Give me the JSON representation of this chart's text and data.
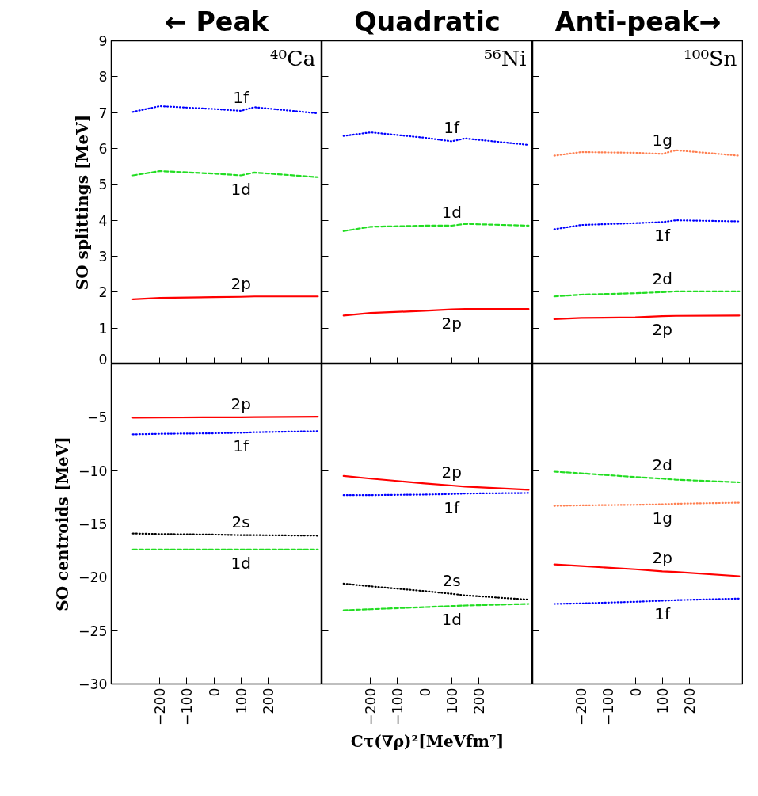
{
  "chart_data": [
    {
      "type": "line",
      "title": "← Peak",
      "ylabel": "SO splittings [MeV]",
      "annotations": [
        "⁴⁰Ca"
      ],
      "x": [
        -300,
        -200,
        0,
        100,
        150,
        385
      ],
      "xlim": [
        -380,
        400
      ],
      "ylim": [
        0,
        9
      ],
      "xticks": [
        -200,
        -100,
        0,
        100,
        200
      ],
      "yticks": [
        0,
        1,
        2,
        3,
        4,
        5,
        6,
        7,
        8,
        9
      ],
      "tick_labels": "y",
      "grid": false,
      "legend": false,
      "series": [
        {
          "name": "1f",
          "color": "#0000ff",
          "line_style": "dotted",
          "values": [
            7.02,
            7.18,
            7.1,
            7.05,
            7.15,
            6.98
          ]
        },
        {
          "name": "1d",
          "color": "#22dd22",
          "line_style": "dashed",
          "values": [
            5.25,
            5.37,
            5.3,
            5.25,
            5.33,
            5.2
          ]
        },
        {
          "name": "2p",
          "color": "#ff0000",
          "line_style": "solid",
          "values": [
            1.8,
            1.84,
            1.86,
            1.87,
            1.88,
            1.88
          ]
        }
      ]
    },
    {
      "type": "line",
      "title": "Quadratic",
      "annotations": [
        "⁵⁶Ni"
      ],
      "x": [
        -300,
        -200,
        0,
        100,
        150,
        385
      ],
      "xlim": [
        -380,
        400
      ],
      "ylim": [
        0,
        9
      ],
      "xticks": [
        -200,
        -100,
        0,
        100,
        200
      ],
      "yticks": [
        0,
        1,
        2,
        3,
        4,
        5,
        6,
        7,
        8,
        9
      ],
      "tick_labels": false,
      "grid": false,
      "legend": false,
      "series": [
        {
          "name": "1f",
          "color": "#0000ff",
          "line_style": "dotted",
          "values": [
            6.35,
            6.45,
            6.3,
            6.2,
            6.28,
            6.1
          ]
        },
        {
          "name": "2p",
          "color": "#ff0000",
          "line_style": "solid",
          "values": [
            1.35,
            1.42,
            1.48,
            1.52,
            1.53,
            1.53
          ]
        },
        {
          "name": "1d",
          "color": "#22dd22",
          "line_style": "dashed",
          "values": [
            3.7,
            3.82,
            3.85,
            3.85,
            3.9,
            3.85
          ]
        }
      ]
    },
    {
      "type": "line",
      "title": "Anti-peak→",
      "annotations": [
        "¹⁰⁰Sn"
      ],
      "x": [
        -300,
        -200,
        0,
        100,
        150,
        385
      ],
      "xlim": [
        -380,
        400
      ],
      "ylim": [
        0,
        9
      ],
      "xticks": [
        -200,
        -100,
        0,
        100,
        200
      ],
      "yticks": [
        0,
        1,
        2,
        3,
        4,
        5,
        6,
        7,
        8,
        9
      ],
      "tick_labels": false,
      "grid": false,
      "legend": false,
      "series": [
        {
          "name": "2d",
          "color": "#22dd22",
          "line_style": "dashed",
          "values": [
            1.88,
            1.93,
            1.97,
            2.0,
            2.02,
            2.02
          ]
        },
        {
          "name": "2p",
          "color": "#ff0000",
          "line_style": "solid",
          "values": [
            1.25,
            1.28,
            1.3,
            1.33,
            1.34,
            1.35
          ]
        },
        {
          "name": "1g",
          "color": "#ff7f50",
          "line_style": "dotted",
          "values": [
            5.8,
            5.9,
            5.88,
            5.85,
            5.95,
            5.8
          ]
        },
        {
          "name": "1f",
          "color": "#0000ff",
          "line_style": "dotted",
          "values": [
            3.75,
            3.87,
            3.92,
            3.95,
            4.0,
            3.97
          ]
        }
      ]
    },
    {
      "type": "line",
      "ylabel": "SO centroids [MeV]",
      "x": [
        -300,
        -200,
        0,
        100,
        150,
        385
      ],
      "xlim": [
        -380,
        400
      ],
      "ylim": [
        -30,
        0
      ],
      "xticks": [
        -200,
        -100,
        0,
        100,
        200
      ],
      "yticks": [
        -5,
        -10,
        -15,
        -20,
        -25,
        -30
      ],
      "grid": false,
      "legend": false,
      "series": [
        {
          "name": "2p",
          "color": "#ff0000",
          "line_style": "solid",
          "values": [
            -5.05,
            -5.03,
            -5.0,
            -5.0,
            -4.98,
            -4.95
          ]
        },
        {
          "name": "1f",
          "color": "#0000ff",
          "line_style": "dotted",
          "values": [
            -6.6,
            -6.55,
            -6.5,
            -6.45,
            -6.4,
            -6.3
          ]
        },
        {
          "name": "2s",
          "color": "#000000",
          "line_style": "dotted",
          "values": [
            -15.9,
            -15.95,
            -16.0,
            -16.05,
            -16.05,
            -16.1
          ]
        },
        {
          "name": "1d",
          "color": "#22dd22",
          "line_style": "dashed",
          "values": [
            -17.4,
            -17.4,
            -17.4,
            -17.4,
            -17.4,
            -17.4
          ]
        }
      ]
    },
    {
      "type": "line",
      "xlabel": "Cτ(∇ρ)²[MeVfm⁷]",
      "x": [
        -300,
        -200,
        0,
        100,
        150,
        385
      ],
      "xlim": [
        -380,
        400
      ],
      "ylim": [
        -30,
        0
      ],
      "xticks": [
        -200,
        -100,
        0,
        100,
        200
      ],
      "yticks": [
        -5,
        -10,
        -15,
        -20,
        -25,
        -30
      ],
      "tick_labels": "x",
      "grid": false,
      "legend": false,
      "series": [
        {
          "name": "2p",
          "color": "#ff0000",
          "line_style": "solid",
          "values": [
            -10.5,
            -10.75,
            -11.2,
            -11.4,
            -11.5,
            -11.8
          ]
        },
        {
          "name": "1f",
          "color": "#0000ff",
          "line_style": "dotted",
          "values": [
            -12.3,
            -12.3,
            -12.25,
            -12.2,
            -12.15,
            -12.1
          ]
        },
        {
          "name": "2s",
          "color": "#000000",
          "line_style": "dotted",
          "values": [
            -20.6,
            -20.85,
            -21.3,
            -21.55,
            -21.7,
            -22.1
          ]
        },
        {
          "name": "1d",
          "color": "#22dd22",
          "line_style": "dashed",
          "values": [
            -23.1,
            -23.0,
            -22.8,
            -22.7,
            -22.65,
            -22.5
          ]
        }
      ]
    },
    {
      "type": "line",
      "x": [
        -300,
        -200,
        0,
        100,
        150,
        385
      ],
      "xlim": [
        -380,
        400
      ],
      "ylim": [
        -30,
        0
      ],
      "xticks": [
        -200,
        -100,
        0,
        100,
        200
      ],
      "yticks": [
        -5,
        -10,
        -15,
        -20,
        -25,
        -30
      ],
      "tick_labels": "x",
      "grid": false,
      "legend": false,
      "series": [
        {
          "name": "2d",
          "color": "#22dd22",
          "line_style": "dashed",
          "values": [
            -10.1,
            -10.25,
            -10.6,
            -10.75,
            -10.85,
            -11.1
          ]
        },
        {
          "name": "1g",
          "color": "#ff7f50",
          "line_style": "dotted",
          "values": [
            -13.3,
            -13.25,
            -13.2,
            -13.15,
            -13.1,
            -13.0
          ]
        },
        {
          "name": "2p",
          "color": "#ff0000",
          "line_style": "solid",
          "values": [
            -18.8,
            -18.95,
            -19.25,
            -19.45,
            -19.5,
            -19.9
          ]
        },
        {
          "name": "1f",
          "color": "#0000ff",
          "line_style": "dotted",
          "values": [
            -22.5,
            -22.45,
            -22.3,
            -22.2,
            -22.15,
            -22.0
          ]
        }
      ]
    }
  ]
}
